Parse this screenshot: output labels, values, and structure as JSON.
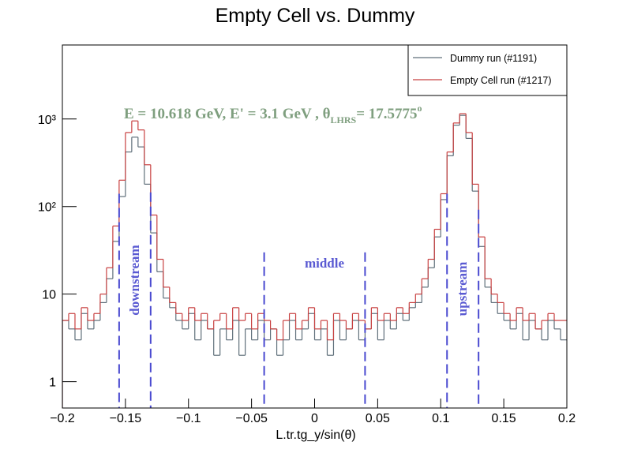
{
  "chart_data": {
    "type": "histogram",
    "title": "Empty Cell vs. Dummy",
    "x_label": "L.tr.tg_y/sin(θ)",
    "log_y": true,
    "legend": "top-right",
    "xlim": [
      -0.2,
      0.2
    ],
    "ylim": [
      0.5,
      7000
    ],
    "xticks": [
      {
        "value": -0.2,
        "label": "−0.2"
      },
      {
        "value": -0.15,
        "label": "−0.15"
      },
      {
        "value": -0.1,
        "label": "−0.1"
      },
      {
        "value": -0.05,
        "label": "−0.05"
      },
      0,
      0.05,
      0.1,
      0.15,
      0.2
    ],
    "yticks": [
      1,
      10,
      {
        "value": 100,
        "label": "10²"
      },
      {
        "value": 1000,
        "label": "10³"
      }
    ],
    "bins": [
      -0.2,
      -0.195,
      -0.19,
      -0.185,
      -0.18,
      -0.175,
      -0.17,
      -0.165,
      -0.16,
      -0.155,
      -0.15,
      -0.145,
      -0.14,
      -0.135,
      -0.13,
      -0.125,
      -0.12,
      -0.115,
      -0.11,
      -0.105,
      -0.1,
      -0.095,
      -0.09,
      -0.085,
      -0.08,
      -0.075,
      -0.07,
      -0.065,
      -0.06,
      -0.055,
      -0.05,
      -0.045,
      -0.04,
      -0.035,
      -0.03,
      -0.025,
      -0.02,
      -0.015,
      -0.01,
      -0.005,
      0,
      0.005,
      0.01,
      0.015,
      0.02,
      0.025,
      0.03,
      0.035,
      0.04,
      0.045,
      0.05,
      0.055,
      0.06,
      0.065,
      0.07,
      0.075,
      0.08,
      0.085,
      0.09,
      0.095,
      0.1,
      0.105,
      0.11,
      0.115,
      0.12,
      0.125,
      0.13,
      0.135,
      0.14,
      0.145,
      0.15,
      0.155,
      0.16,
      0.165,
      0.17,
      0.175,
      0.18,
      0.185,
      0.19,
      0.195,
      0.2
    ],
    "series": [
      {
        "name": "Dummy run (#1191)",
        "color": "#5f6f7a",
        "values": [
          5,
          4,
          3,
          6,
          4,
          5,
          8,
          15,
          40,
          130,
          420,
          620,
          480,
          180,
          50,
          18,
          9,
          7,
          5,
          4,
          6,
          3,
          5,
          4,
          2,
          4,
          3,
          5,
          2,
          4,
          3,
          5,
          3,
          4,
          2,
          3,
          5,
          3,
          4,
          6,
          3,
          4,
          2,
          5,
          3,
          4,
          5,
          3,
          4,
          6,
          3,
          5,
          4,
          6,
          5,
          7,
          8,
          12,
          20,
          45,
          120,
          380,
          850,
          1100,
          600,
          150,
          35,
          12,
          8,
          6,
          5,
          4,
          6,
          3,
          5,
          4,
          3,
          5,
          4,
          3
        ]
      },
      {
        "name": "Empty Cell run (#1217)",
        "color": "#c84040",
        "values": [
          5,
          6,
          4,
          7,
          5,
          6,
          10,
          20,
          60,
          200,
          700,
          950,
          750,
          300,
          80,
          25,
          12,
          8,
          6,
          5,
          7,
          5,
          6,
          4,
          5,
          6,
          4,
          7,
          5,
          6,
          4,
          6,
          5,
          4,
          3,
          5,
          6,
          4,
          5,
          7,
          4,
          5,
          3,
          6,
          5,
          4,
          6,
          5,
          4,
          7,
          5,
          6,
          5,
          7,
          6,
          8,
          10,
          15,
          25,
          55,
          140,
          420,
          900,
          1150,
          700,
          180,
          45,
          15,
          10,
          8,
          6,
          5,
          7,
          5,
          6,
          4,
          5,
          6,
          5,
          5
        ]
      }
    ],
    "cut_lines": {
      "color": "#4a4ad0",
      "lines": [
        {
          "x": -0.155,
          "top": 140
        },
        {
          "x": -0.13,
          "top": 145
        },
        {
          "x": -0.04,
          "top": 30
        },
        {
          "x": 0.04,
          "top": 30
        },
        {
          "x": 0.105,
          "top": 140
        },
        {
          "x": 0.13,
          "top": 92
        }
      ]
    },
    "annotations": {
      "downstream": "downstream",
      "middle": "middle",
      "upstream": "upstream",
      "kinematics": {
        "main": "E = 10.618 GeV, E' = 3.1 GeV ,  θ",
        "sub": "LHRS",
        "rest": "= 17.5775",
        "sup": "o"
      }
    }
  }
}
